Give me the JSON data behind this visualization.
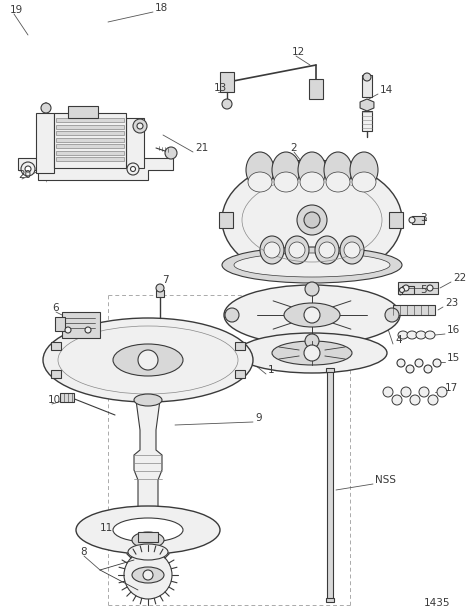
{
  "bg_color": "#ffffff",
  "line_color": "#3a3a3a",
  "fill_light": "#f0f0f0",
  "fill_med": "#d8d8d8",
  "fill_dark": "#b0b0b0",
  "diagram_id": "1435",
  "figsize": [
    4.74,
    6.13
  ],
  "dpi": 100,
  "label_fs": 7.5
}
